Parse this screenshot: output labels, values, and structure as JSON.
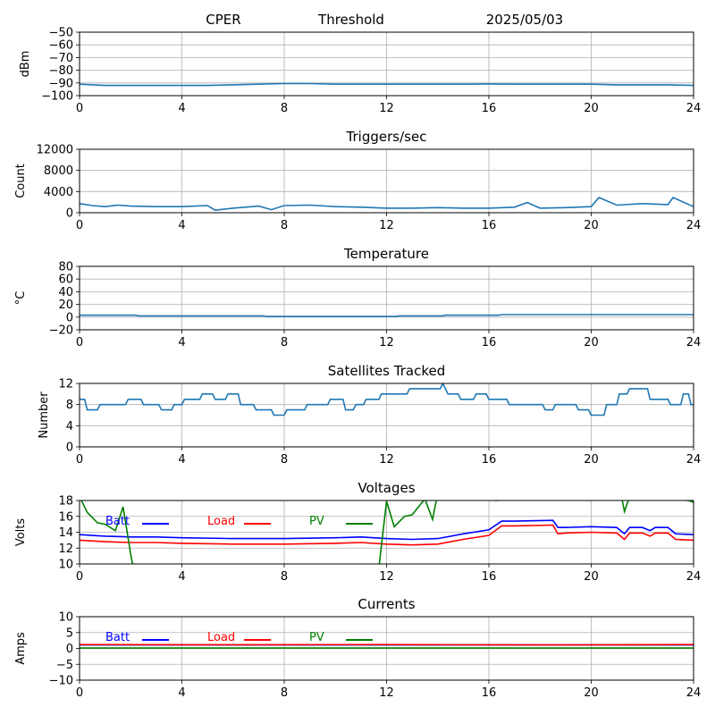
{
  "header": {
    "site": "CPER",
    "mode": "Threshold",
    "date": "2025/05/03"
  },
  "colors": {
    "series": "#1f77b4",
    "batt": "#0000ff",
    "load": "#ff0000",
    "pv": "#008000",
    "grid": "#b0b0b0"
  },
  "chart_data": [
    {
      "type": "line",
      "title": "",
      "ylabel": "dBm",
      "xlim": [
        0,
        24
      ],
      "ylim": [
        -100,
        -50
      ],
      "xticks": [
        "0",
        "4",
        "8",
        "12",
        "16",
        "20",
        "24"
      ],
      "yticks": [
        "−100",
        "−90",
        "−80",
        "−70",
        "−60",
        "−50"
      ],
      "series": [
        {
          "x": [
            0,
            1,
            2,
            3,
            4,
            5,
            6,
            7,
            8,
            9,
            10,
            11,
            12,
            13,
            14,
            15,
            16,
            17,
            18,
            19,
            20,
            21,
            22,
            23,
            24
          ],
          "y": [
            -91,
            -92,
            -92,
            -92,
            -92,
            -92,
            -91.5,
            -91,
            -90.5,
            -90.5,
            -91,
            -91,
            -91,
            -91,
            -91,
            -91,
            -90.8,
            -91,
            -91,
            -91,
            -91,
            -91.5,
            -91.5,
            -91.5,
            -92
          ]
        }
      ]
    },
    {
      "type": "line",
      "title": "Triggers/sec",
      "ylabel": "Count",
      "xlim": [
        0,
        24
      ],
      "ylim": [
        0,
        12500
      ],
      "xticks": [
        "0",
        "4",
        "8",
        "12",
        "16",
        "20",
        "24"
      ],
      "yticks": [
        "0",
        "4000",
        "8000",
        "12000"
      ],
      "series": [
        {
          "x": [
            0,
            0.5,
            1,
            1.5,
            2,
            3,
            4,
            5,
            5.3,
            6,
            7,
            7.5,
            8,
            9,
            10,
            11,
            12,
            13,
            14,
            15,
            16,
            17,
            17.5,
            18,
            19,
            20,
            20.3,
            21,
            22,
            23,
            23.2,
            24
          ],
          "y": [
            1800,
            1400,
            1200,
            1500,
            1300,
            1200,
            1200,
            1400,
            500,
            900,
            1300,
            600,
            1400,
            1500,
            1200,
            1100,
            900,
            900,
            1000,
            900,
            900,
            1100,
            2000,
            900,
            1000,
            1200,
            3000,
            1500,
            1800,
            1600,
            3000,
            1200
          ]
        }
      ]
    },
    {
      "type": "line",
      "title": "Temperature",
      "ylabel": "°C",
      "xlim": [
        0,
        24
      ],
      "ylim": [
        -20,
        80
      ],
      "xticks": [
        "0",
        "4",
        "8",
        "12",
        "16",
        "20",
        "24"
      ],
      "yticks": [
        "−20",
        "0",
        "20",
        "40",
        "60",
        "80"
      ],
      "series": [
        {
          "x": [
            0,
            2.2,
            2.3,
            7.2,
            7.3,
            12.4,
            12.5,
            14.2,
            14.3,
            16.4,
            16.5,
            24
          ],
          "y": [
            3,
            3,
            2,
            2,
            1,
            1,
            2,
            2,
            3,
            3,
            4,
            4
          ]
        }
      ]
    },
    {
      "type": "line",
      "title": "Satellites Tracked",
      "ylabel": "Number",
      "xlim": [
        0,
        24
      ],
      "ylim": [
        0,
        12
      ],
      "xticks": [
        "0",
        "4",
        "8",
        "12",
        "16",
        "20",
        "24"
      ],
      "yticks": [
        "0",
        "4",
        "8",
        "12"
      ],
      "series": [
        {
          "x": [
            0,
            0.2,
            0.3,
            0.7,
            0.8,
            1.8,
            1.9,
            2.4,
            2.5,
            3.1,
            3.2,
            3.6,
            3.7,
            4.0,
            4.1,
            4.7,
            4.8,
            5.2,
            5.3,
            5.7,
            5.8,
            6.2,
            6.3,
            6.8,
            6.9,
            7.5,
            7.6,
            8.0,
            8.1,
            8.8,
            8.9,
            9.0,
            9.1,
            9.7,
            9.8,
            10.3,
            10.4,
            10.7,
            10.8,
            11.1,
            11.2,
            11.7,
            11.8,
            12.2,
            12.3,
            12.8,
            12.9,
            13.3,
            13.4,
            14.1,
            14.2,
            14.3,
            14.4,
            14.8,
            14.9,
            15.4,
            15.5,
            15.9,
            16.0,
            16.7,
            16.8,
            18.1,
            18.2,
            18.5,
            18.6,
            19.4,
            19.5,
            19.9,
            20.0,
            20.5,
            20.6,
            21.0,
            21.1,
            21.4,
            21.5,
            22.2,
            22.3,
            23.0,
            23.1,
            23.5,
            23.6,
            23.8,
            23.9,
            24
          ],
          "y": [
            9,
            9,
            7,
            7,
            8,
            8,
            9,
            9,
            8,
            8,
            7,
            7,
            8,
            8,
            9,
            9,
            10,
            10,
            9,
            9,
            10,
            10,
            8,
            8,
            7,
            7,
            6,
            6,
            7,
            7,
            8,
            8,
            8,
            8,
            9,
            9,
            7,
            7,
            8,
            8,
            9,
            9,
            10,
            10,
            10,
            10,
            11,
            11,
            11,
            11,
            12,
            11,
            10,
            10,
            9,
            9,
            10,
            10,
            9,
            9,
            8,
            8,
            7,
            7,
            8,
            8,
            7,
            7,
            6,
            6,
            8,
            8,
            10,
            10,
            11,
            11,
            9,
            9,
            8,
            8,
            10,
            10,
            8,
            8
          ]
        }
      ]
    },
    {
      "type": "line",
      "title": "Voltages",
      "ylabel": "Volts",
      "xlim": [
        0,
        24
      ],
      "ylim": [
        10,
        18
      ],
      "xticks": [
        "0",
        "4",
        "8",
        "12",
        "16",
        "20",
        "24"
      ],
      "yticks": [
        "10",
        "12",
        "14",
        "16",
        "18"
      ],
      "legend": [
        "Batt",
        "Load",
        "PV"
      ],
      "series": [
        {
          "name": "Batt",
          "x": [
            0,
            1,
            2,
            3,
            4,
            6,
            8,
            10,
            11,
            12,
            13,
            14,
            15,
            16,
            16.5,
            17,
            18.5,
            18.7,
            19,
            20,
            21,
            21.3,
            21.5,
            22,
            22.3,
            22.5,
            23,
            23.3,
            24
          ],
          "y": [
            13.7,
            13.5,
            13.4,
            13.4,
            13.3,
            13.2,
            13.2,
            13.3,
            13.4,
            13.2,
            13.1,
            13.2,
            13.8,
            14.3,
            15.4,
            15.4,
            15.5,
            14.6,
            14.6,
            14.7,
            14.6,
            13.8,
            14.6,
            14.6,
            14.2,
            14.6,
            14.6,
            13.8,
            13.7
          ]
        },
        {
          "name": "Load",
          "x": [
            0,
            1,
            2,
            3,
            4,
            6,
            8,
            10,
            11,
            12,
            13,
            14,
            15,
            16,
            16.5,
            17,
            18.5,
            18.7,
            19,
            20,
            21,
            21.3,
            21.5,
            22,
            22.3,
            22.5,
            23,
            23.3,
            24
          ],
          "y": [
            13.0,
            12.8,
            12.7,
            12.7,
            12.6,
            12.5,
            12.5,
            12.6,
            12.7,
            12.5,
            12.4,
            12.5,
            13.1,
            13.6,
            14.8,
            14.8,
            14.9,
            13.8,
            13.9,
            14.0,
            13.9,
            13.1,
            13.9,
            13.9,
            13.5,
            13.9,
            13.9,
            13.1,
            13.0
          ]
        },
        {
          "name": "PV",
          "x": [
            0,
            0.3,
            0.7,
            1.0,
            1.4,
            1.7,
            2.0,
            2.1,
            11.7,
            12.0,
            12.3,
            12.7,
            13.0,
            13.5,
            13.8,
            14.0,
            16.0,
            16.3,
            16.5,
            21.2,
            21.3,
            21.5,
            23.8,
            24
          ],
          "y": [
            18.5,
            16.5,
            15.2,
            15.0,
            14.2,
            17.2,
            11.2,
            9.5,
            9.5,
            17.9,
            14.7,
            16.0,
            16.2,
            18.2,
            15.6,
            19.0,
            18.1,
            18.0,
            18.5,
            18.2,
            16.6,
            18.5,
            18.0,
            17.8
          ]
        }
      ]
    },
    {
      "type": "line",
      "title": "Currents",
      "ylabel": "Amps",
      "xlim": [
        0,
        24
      ],
      "ylim": [
        -10,
        10
      ],
      "xticks": [
        "0",
        "4",
        "8",
        "12",
        "16",
        "20",
        "24"
      ],
      "yticks": [
        "−10",
        "−5",
        "0",
        "5",
        "10"
      ],
      "legend": [
        "Batt",
        "Load",
        "PV"
      ],
      "series": [
        {
          "name": "Batt",
          "x": [
            0,
            24
          ],
          "y": [
            1.1,
            1.1
          ]
        },
        {
          "name": "Load",
          "x": [
            0,
            6,
            12,
            18,
            24
          ],
          "y": [
            1.2,
            1.15,
            1.2,
            1.1,
            1.2
          ]
        },
        {
          "name": "PV",
          "x": [
            0,
            24
          ],
          "y": [
            0.1,
            0.1
          ]
        }
      ]
    }
  ]
}
